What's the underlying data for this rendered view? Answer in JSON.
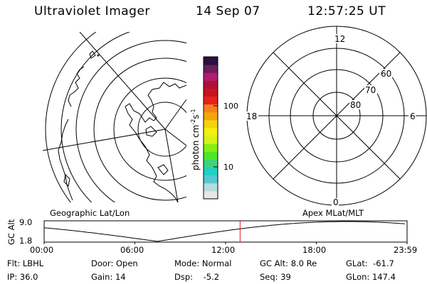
{
  "header": {
    "instrument": "Ultraviolet Imager",
    "date": "14 Sep 07",
    "time": "12:57:25 UT"
  },
  "left_map": {
    "label": "Geographic Lat/Lon"
  },
  "right_map": {
    "label": "Apex MLat/MLT",
    "mlt_labels": [
      "12",
      "18",
      "6",
      "0"
    ],
    "mlat_labels": [
      "60",
      "70",
      "80"
    ]
  },
  "colorbar": {
    "unit_label": "photon cm-2s-1",
    "unit_base": "photon cm",
    "unit_exp1": "-2",
    "unit_mid": "s",
    "unit_exp2": "-1",
    "tick_labels": [
      "100",
      "10"
    ],
    "colors": [
      "#e6e6e6",
      "#b7dcde",
      "#55c8d4",
      "#1fd0c5",
      "#3cd37c",
      "#4ee52c",
      "#89ee13",
      "#d4f419",
      "#f4f00f",
      "#f3d40b",
      "#f4a40d",
      "#f5801b",
      "#e4221c",
      "#c9141d",
      "#b01037",
      "#b41b71",
      "#6a1f5a",
      "#2b1040"
    ]
  },
  "altitude_plot": {
    "y_axis_label": "GC Alt",
    "y_ticks": [
      "9.0",
      "1.8"
    ],
    "x_ticks": [
      "00:00",
      "06:00",
      "12:00",
      "18:00",
      "23:59"
    ],
    "current_time_marker": "12:57",
    "current_marker_color": "#e0201a"
  },
  "info": {
    "flt_label": "Flt:",
    "flt_value": "LBHL",
    "door_label": "Door:",
    "door_value": "Open",
    "mode_label": "Mode:",
    "mode_value": "Normal",
    "gcalt_label": "GC Alt:",
    "gcalt_value": "8.0 Re",
    "glat_label": "GLat:",
    "glat_value": "-61.7",
    "ip_label": "IP:",
    "ip_value": "36.0",
    "gain_label": "Gain:",
    "gain_value": "14",
    "dsp_label": "Dsp:",
    "dsp_value": "-5.2",
    "seq_label": "Seq:",
    "seq_value": "39",
    "glon_label": "GLon:",
    "glon_value": "147.4"
  }
}
